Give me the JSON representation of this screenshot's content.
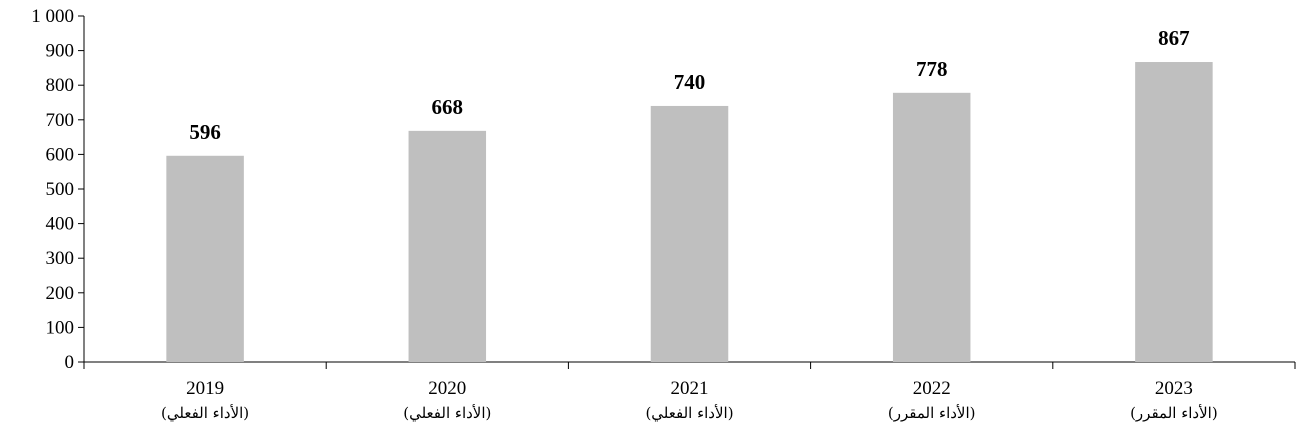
{
  "chart_data": {
    "type": "bar",
    "categories": [
      "2019",
      "2020",
      "2021",
      "2022",
      "2023"
    ],
    "category_sublabels": [
      "(الأداء الفعلي)",
      "(الأداء الفعلي)",
      "(الأداء الفعلي)",
      "(الأداء المقرر)",
      "(الأداء المقرر)"
    ],
    "values": [
      596,
      668,
      740,
      778,
      867
    ],
    "data_labels": [
      "596",
      "668",
      "740",
      "778",
      "867"
    ],
    "y_ticks": [
      0,
      100,
      200,
      300,
      400,
      500,
      600,
      700,
      800,
      900,
      1000
    ],
    "y_tick_labels": [
      "0",
      "100",
      "200",
      "300",
      "400",
      "500",
      "600",
      "700",
      "800",
      "900",
      "1 000"
    ],
    "ylim": [
      0,
      1000
    ],
    "title": "",
    "xlabel": "",
    "ylabel": "",
    "grid": false,
    "bar_color": "#bfbfbf"
  }
}
